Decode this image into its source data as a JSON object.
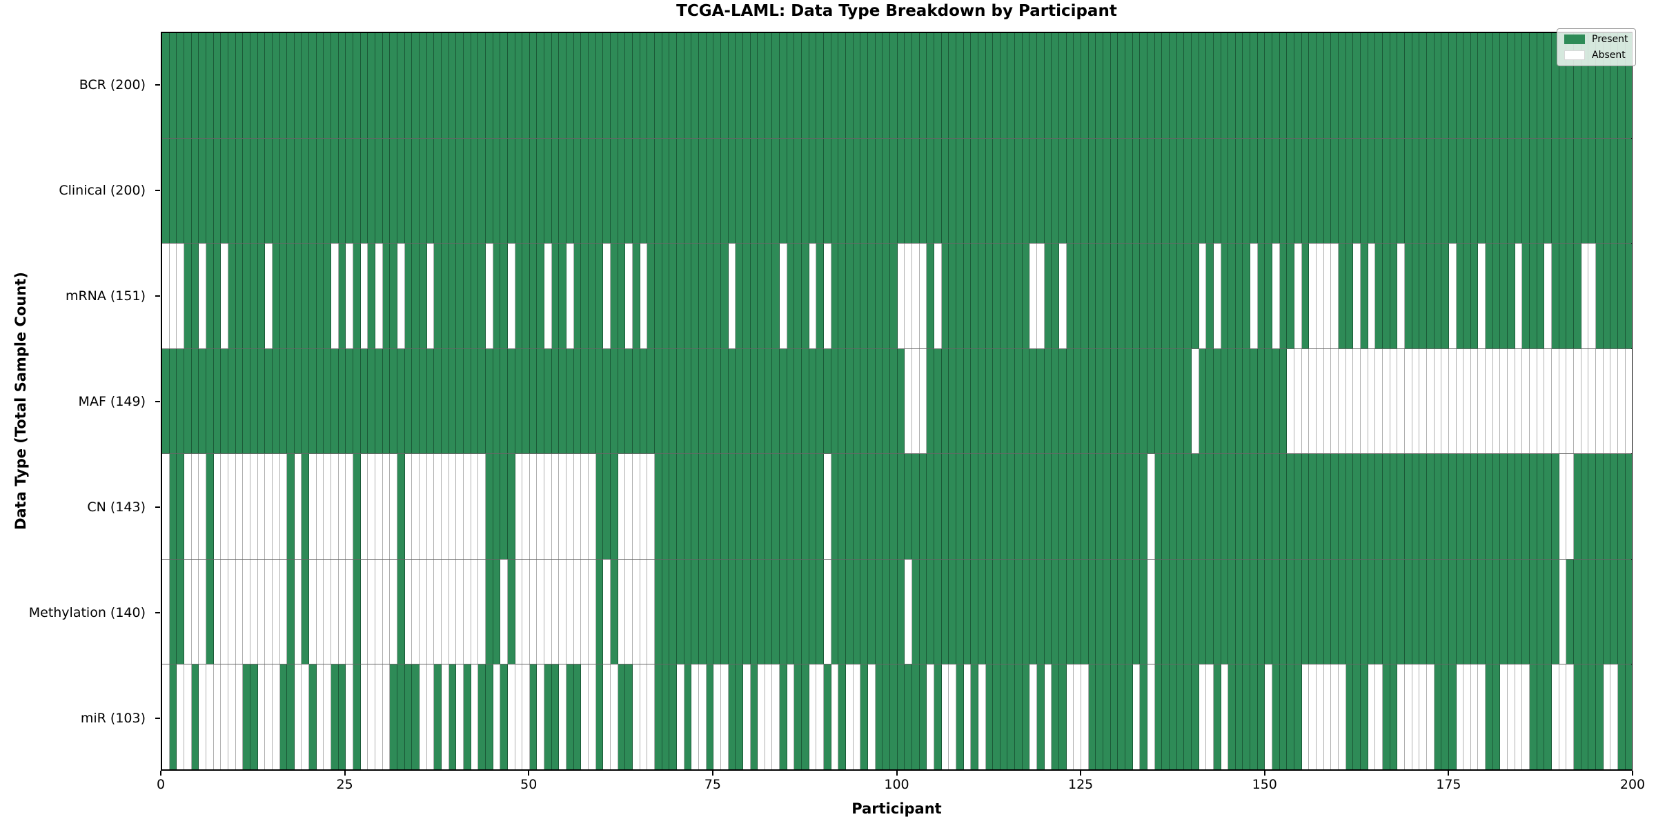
{
  "figure": {
    "title": "TCGA-LAML: Data Type Breakdown by Participant",
    "x_axis_label": "Participant",
    "y_axis_label": "Data Type (Total Sample Count)"
  },
  "legend": {
    "items": [
      {
        "label": "Present",
        "color": "#2e8b57"
      },
      {
        "label": "Absent",
        "color": "#ffffff"
      }
    ],
    "position": "upper right"
  },
  "chart_data": {
    "type": "heatmap",
    "title": "TCGA-LAML: Data Type Breakdown by Participant",
    "xlabel": "Participant",
    "ylabel": "Data Type (Total Sample Count)",
    "x_range": [
      0,
      200
    ],
    "x_ticks": [
      0,
      25,
      50,
      75,
      100,
      125,
      150,
      175,
      200
    ],
    "n_participants": 200,
    "grid": false,
    "legend_position": "upper right",
    "colors": {
      "present": "#2e8b57",
      "absent": "#ffffff"
    },
    "value_encoding": {
      "1": "Present",
      "0": "Absent"
    },
    "rows": [
      {
        "label": "BCR (200)",
        "data_type": "BCR",
        "present_count": 200,
        "absent_count": 0,
        "pattern": "11111111111111111111111111111111111111111111111111111111111111111111111111111111111111111111111111111111111111111111111111111111111111111111111111111111111111111111111111111111111111111111111111111111"
      },
      {
        "label": "Clinical (200)",
        "data_type": "Clinical",
        "present_count": 200,
        "absent_count": 0,
        "pattern": "11111111111111111111111111111111111111111111111111111111111111111111111111111111111111111111111111111111111111111111111111111111111111111111111111111111111111111111111111111111111111111111111111111111"
      },
      {
        "label": "mRNA (151)",
        "data_type": "mRNA",
        "present_count": 151,
        "absent_count": 49,
        "pattern": "00011011011111011111111010101011011101111111011011110110111101101011111111111011111101110101111111110000101111111111110011011111111111111111101011110110110100001101011101111110111011110111011110011111"
      },
      {
        "label": "MAF (149)",
        "data_type": "MAF",
        "present_count": 149,
        "absent_count": 51,
        "pattern": "11111111111111111111111111111111111111111111111111111111111111111111111111111111111111111111111111111000111111111111111111111111111111111111011111111111100000000000000000000000000000000000000000000000"
      },
      {
        "label": "CN (143)",
        "data_type": "CN",
        "present_count": 143,
        "absent_count": 57,
        "pattern": "01100010000000000101000000100000100000000000111100000000000111000001111111111111111111111101111111111111111111111111111111111111111111011111111111111111111111111111111111111111111111111111110011111111"
      },
      {
        "label": "Methylation (140)",
        "data_type": "Methylation",
        "present_count": 140,
        "absent_count": 60,
        "pattern": "01100010000000000101000000100000100000000000110100000000000101000001111111111111111111111101111111111011111111111111111111111111111111011111111111111111111111111111111111111111111111111111110111111111"
      },
      {
        "label": "miR (103)",
        "data_type": "miR",
        "present_count": 103,
        "absent_count": 97,
        "pattern": "01001000000110001100100110100001111001010101101000101101100100110001110100100110100010110010100101111111010010101111110101100011111101011111100101111101111000000111001100000111000011000011100011110011"
      }
    ]
  }
}
